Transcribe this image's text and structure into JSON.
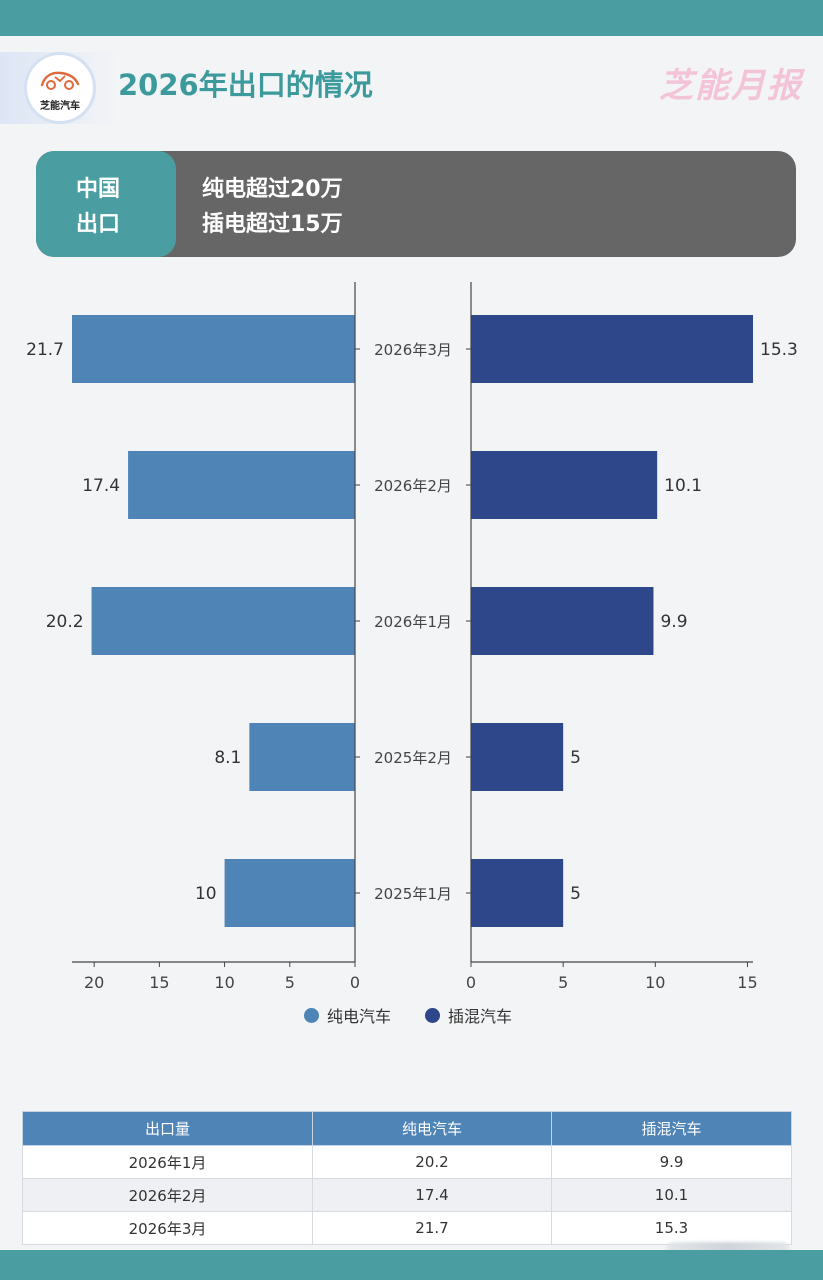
{
  "header": {
    "logo_text": "芝能汽车",
    "title": "2026年出口的情况",
    "brand": "芝能月报"
  },
  "summary": {
    "tag_line1": "中国",
    "tag_line2": "出口",
    "line1": "纯电超过20万",
    "line2": "插电超过15万"
  },
  "colors": {
    "teal": "#4a9ea1",
    "bev": "#4f84b6",
    "phev": "#2e478b",
    "summary_bg": "#666666"
  },
  "chart_data": {
    "type": "bar",
    "orientation": "horizontal-butterfly",
    "categories": [
      "2026年3月",
      "2026年2月",
      "2026年1月",
      "2025年2月",
      "2025年1月"
    ],
    "series": [
      {
        "name": "纯电汽车",
        "color": "#4f84b6",
        "values": [
          21.7,
          17.4,
          20.2,
          8.1,
          10
        ],
        "labels": [
          "21.7",
          "17.4",
          "20.2",
          "8.1",
          "10"
        ]
      },
      {
        "name": "插混汽车",
        "color": "#2e478b",
        "values": [
          15.3,
          10.1,
          9.9,
          5,
          5
        ],
        "labels": [
          "15.3",
          "10.1",
          "9.9",
          "5",
          "5"
        ]
      }
    ],
    "left_axis": {
      "range": [
        0,
        21.7
      ],
      "reversed": true,
      "ticks": [
        20,
        15,
        10,
        5,
        0
      ]
    },
    "right_axis": {
      "range": [
        0,
        15.3
      ],
      "ticks": [
        0,
        5,
        10,
        15
      ]
    },
    "legend": "bottom",
    "grid": false
  },
  "table": {
    "headers": [
      "出口量",
      "纯电汽车",
      "插混汽车"
    ],
    "rows": [
      [
        "2026年1月",
        "20.2",
        "9.9"
      ],
      [
        "2026年2月",
        "17.4",
        "10.1"
      ],
      [
        "2026年3月",
        "21.7",
        "15.3"
      ]
    ]
  }
}
